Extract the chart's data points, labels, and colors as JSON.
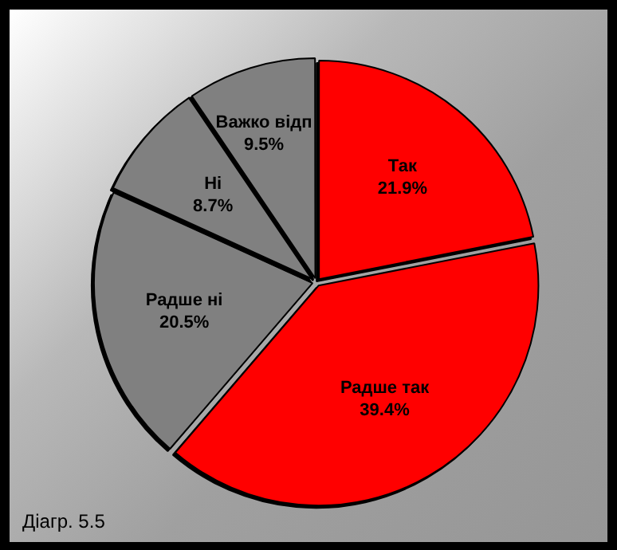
{
  "chart_data": {
    "type": "pie",
    "categories": [
      "Так",
      "Радше так",
      "Радше ні",
      "Ні",
      "Важко відп"
    ],
    "values": [
      21.9,
      39.4,
      20.5,
      8.7,
      9.5
    ],
    "value_labels": [
      "21.9%",
      "39.4%",
      "20.5%",
      "8.7%",
      "9.5%"
    ],
    "colors": [
      "#ff0000",
      "#ff0000",
      "#808080",
      "#808080",
      "#808080"
    ],
    "annotations": [
      "Діагр. 5.5"
    ],
    "legend": false
  }
}
